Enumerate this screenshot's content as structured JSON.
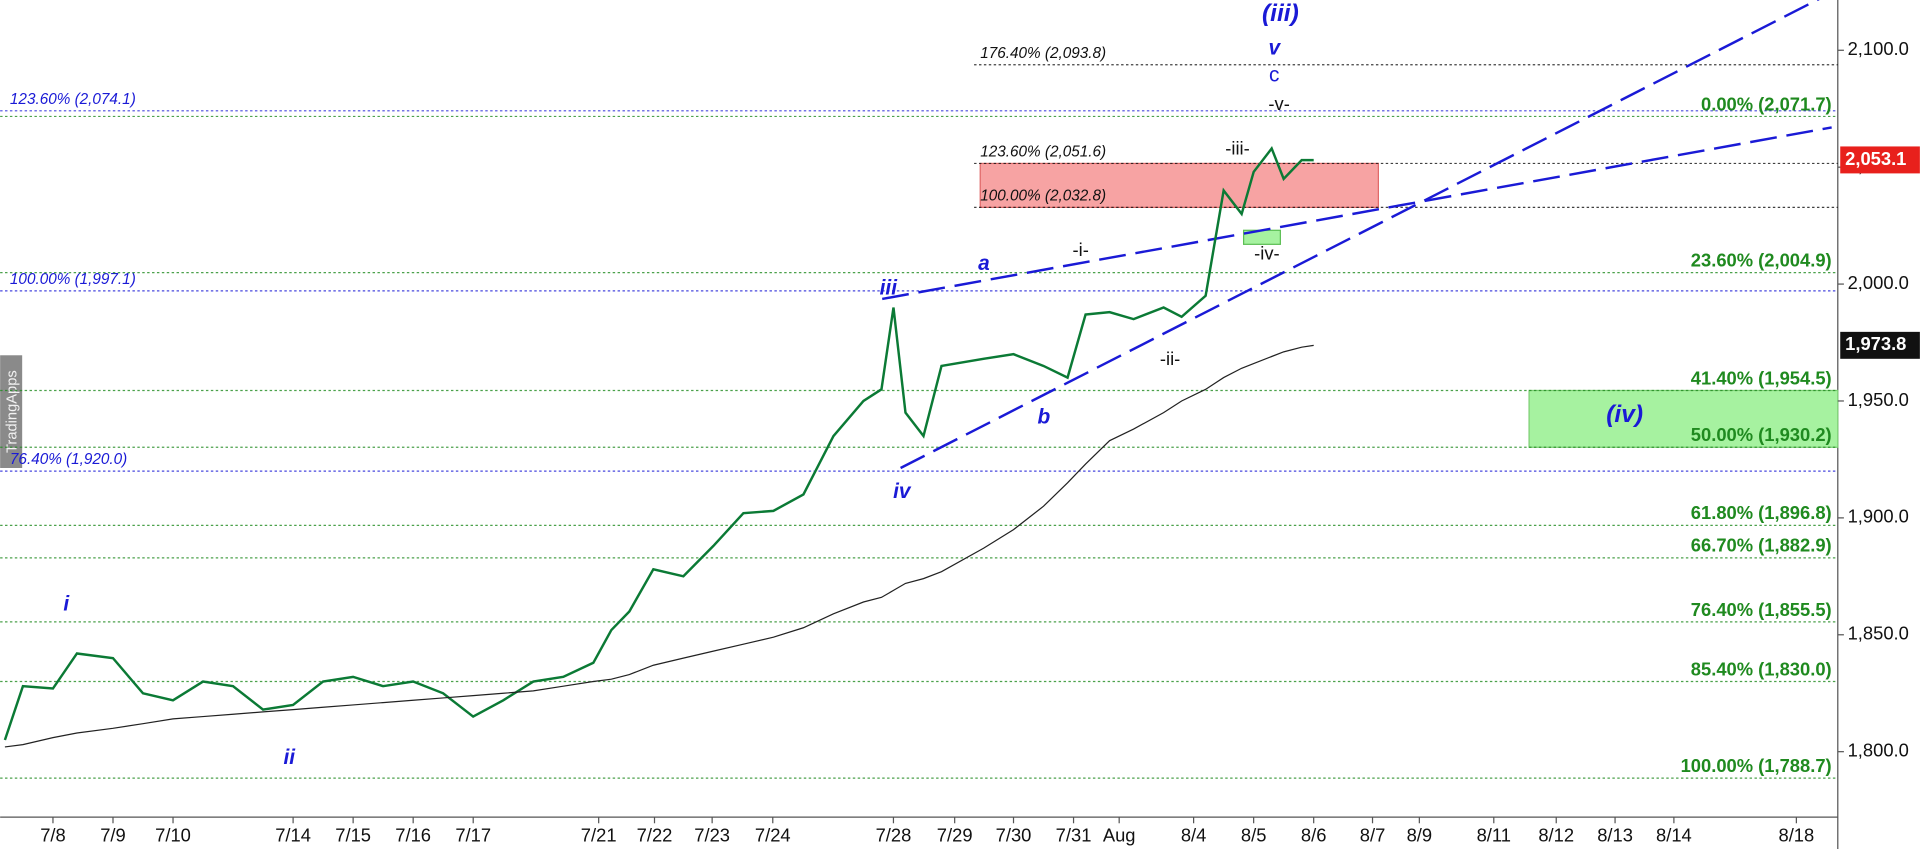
{
  "chart_data": {
    "type": "line",
    "watermark": "TradingApps",
    "xlim": [
      -0.88,
      29.73
    ],
    "ylim": [
      1772,
      2121.5
    ],
    "xticks": [
      {
        "value": 0,
        "label": "7/8"
      },
      {
        "value": 1,
        "label": "7/9"
      },
      {
        "value": 2,
        "label": "7/10"
      },
      {
        "value": 4,
        "label": "7/14"
      },
      {
        "value": 5,
        "label": "7/15"
      },
      {
        "value": 6,
        "label": "7/16"
      },
      {
        "value": 7,
        "label": "7/17"
      },
      {
        "value": 9.09,
        "label": "7/21"
      },
      {
        "value": 10.02,
        "label": "7/22"
      },
      {
        "value": 10.98,
        "label": "7/23"
      },
      {
        "value": 11.99,
        "label": "7/24"
      },
      {
        "value": 14,
        "label": "7/28"
      },
      {
        "value": 15.02,
        "label": "7/29"
      },
      {
        "value": 16,
        "label": "7/30"
      },
      {
        "value": 17,
        "label": "7/31"
      },
      {
        "value": 17.76,
        "label": "Aug"
      },
      {
        "value": 19,
        "label": "8/4"
      },
      {
        "value": 20,
        "label": "8/5"
      },
      {
        "value": 21,
        "label": "8/6"
      },
      {
        "value": 21.98,
        "label": "8/7"
      },
      {
        "value": 22.76,
        "label": "8/9"
      },
      {
        "value": 24,
        "label": "8/11"
      },
      {
        "value": 25.04,
        "label": "8/12"
      },
      {
        "value": 26.02,
        "label": "8/13"
      },
      {
        "value": 27,
        "label": "8/14"
      },
      {
        "value": 29.04,
        "label": "8/18"
      }
    ],
    "yticks": [
      {
        "value": 1800,
        "label": "1,800.0"
      },
      {
        "value": 1850,
        "label": "1,850.0"
      },
      {
        "value": 1900,
        "label": "1,900.0"
      },
      {
        "value": 1950,
        "label": "1,950.0"
      },
      {
        "value": 2000,
        "label": "2,000.0"
      },
      {
        "value": 2050,
        "label": "2,050.0"
      },
      {
        "value": 2100,
        "label": "2,100.0"
      }
    ],
    "x": [
      -0.8,
      -0.5,
      0,
      0.4,
      1,
      1.5,
      2,
      2.5,
      3,
      3.5,
      4,
      4.5,
      5,
      5.5,
      6,
      6.5,
      7,
      7.5,
      8,
      8.5,
      9,
      9.3,
      9.6,
      10,
      10.5,
      11,
      11.5,
      12,
      12.5,
      13,
      13.5,
      13.8,
      14,
      14.2,
      14.5,
      14.8,
      15.5,
      16,
      16.5,
      16.9,
      17.2,
      17.6,
      18,
      18.5,
      18.8,
      19.2,
      19.5,
      19.8,
      20,
      20.3,
      20.5,
      20.8,
      21
    ],
    "series": [
      {
        "color": "#0b7a35",
        "values": [
          1805,
          1828,
          1827,
          1842,
          1840,
          1825,
          1822,
          1830,
          1828,
          1818,
          1820,
          1830,
          1832,
          1828,
          1830,
          1825,
          1815,
          1822,
          1830,
          1832,
          1838,
          1852,
          1860,
          1878,
          1875,
          1888,
          1902,
          1903,
          1910,
          1935,
          1950,
          1955,
          1990,
          1945,
          1935,
          1965,
          1968,
          1970,
          1965,
          1960,
          1987,
          1988,
          1985,
          1990,
          1986,
          1995,
          2040,
          2030,
          2048,
          2058,
          2045,
          2053,
          2053
        ]
      },
      {
        "color": "#222222",
        "values": [
          1802,
          1803,
          1806,
          1808,
          1810,
          1812,
          1814,
          1815,
          1816,
          1817,
          1818,
          1819,
          1820,
          1821,
          1822,
          1823,
          1824,
          1825,
          1826,
          1828,
          1830,
          1831,
          1833,
          1837,
          1840,
          1843,
          1846,
          1849,
          1853,
          1859,
          1864,
          1866,
          1869,
          1872,
          1874,
          1877,
          1887,
          1895,
          1905,
          1915,
          1923,
          1933,
          1938,
          1945,
          1950,
          1955,
          1960,
          1964,
          1966,
          1969,
          1971,
          1973,
          1973.8
        ]
      }
    ],
    "price_tags": [
      {
        "value": 2053.1,
        "label": "2,053.1",
        "color": "#e8201c"
      },
      {
        "value": 1973.8,
        "label": "1,973.8",
        "color": "#111111"
      }
    ],
    "fib_groups": [
      {
        "color": "#1a1ad6",
        "levels": [
          {
            "value": 2074.1,
            "label": "123.60% (2,074.1)"
          },
          {
            "value": 1997.1,
            "label": "100.00% (1,997.1)"
          },
          {
            "value": 1920.0,
            "label": "76.40% (1,920.0)"
          }
        ]
      },
      {
        "color": "#111111",
        "levels": [
          {
            "value": 2093.8,
            "label": "176.40% (2,093.8)"
          },
          {
            "value": 2051.6,
            "label": "123.60% (2,051.6)"
          },
          {
            "value": 2032.8,
            "label": "100.00% (2,032.8)"
          }
        ]
      },
      {
        "color": "#1f8a1f",
        "levels": [
          {
            "value": 2071.7,
            "label": "0.00% (2,071.7)"
          },
          {
            "value": 2004.9,
            "label": "23.60% (2,004.9)"
          },
          {
            "value": 1954.5,
            "label": "41.40% (1,954.5)"
          },
          {
            "value": 1930.2,
            "label": "50.00% (1,930.2)"
          },
          {
            "value": 1896.8,
            "label": "61.80% (1,896.8)"
          },
          {
            "value": 1882.9,
            "label": "66.70% (1,882.9)"
          },
          {
            "value": 1855.5,
            "label": "76.40% (1,855.5)"
          },
          {
            "value": 1830.0,
            "label": "85.40% (1,830.0)"
          },
          {
            "value": 1788.7,
            "label": "100.00% (1,788.7)"
          }
        ]
      }
    ],
    "zones": [
      {
        "from": 2032.8,
        "to": 2051.6,
        "color": "#f7a3a3"
      },
      {
        "from": 1930.2,
        "to": 1954.5,
        "color": "#a6f2a0"
      },
      {
        "from": 2017,
        "to": 2023,
        "color": "#a6f2a0"
      }
    ],
    "wave_labels": [
      "(iii)",
      "v",
      "c",
      "-v-",
      "-iii-",
      "-iv-",
      "a",
      "-i-",
      "iii",
      "-ii-",
      "b",
      "(iv)",
      "iv",
      "i",
      "ii"
    ]
  }
}
